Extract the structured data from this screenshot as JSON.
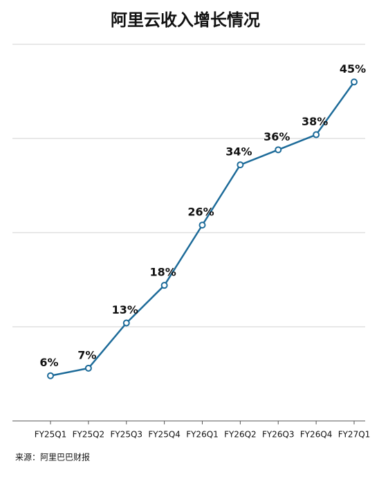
{
  "chart_data": {
    "type": "line",
    "title": "阿里云收入增长情况",
    "categories": [
      "FY25Q1",
      "FY25Q2",
      "FY25Q3",
      "FY25Q4",
      "FY26Q1",
      "FY26Q2",
      "FY26Q3",
      "FY26Q4",
      "FY27Q1"
    ],
    "values": [
      6,
      7,
      13,
      18,
      26,
      34,
      36,
      38,
      45
    ],
    "value_labels": [
      "6%",
      "7%",
      "13%",
      "18%",
      "26%",
      "34%",
      "36%",
      "38%",
      "45%"
    ],
    "color": "#1d6b99",
    "ylim": [
      0,
      50
    ],
    "yticks": [
      0,
      12.5,
      25,
      37.5,
      50
    ],
    "grid": true,
    "source": "来源：阿里巴巴财报"
  }
}
